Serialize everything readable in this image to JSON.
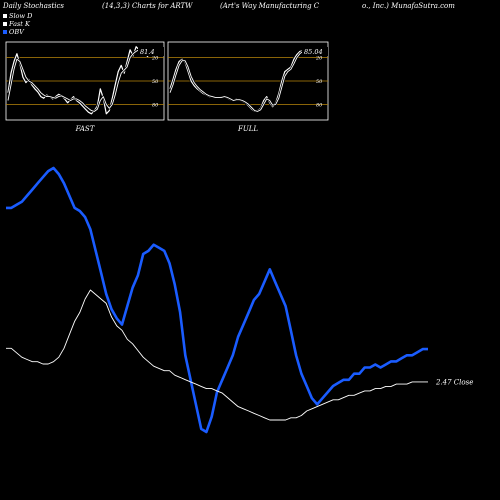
{
  "header": {
    "left": "Daily Stochastics",
    "center_left": "(14,3,3) Charts for ARTW",
    "center": "(Art's Way Manufacturing C",
    "right": "o., Inc.) MunafaSutra.com"
  },
  "legend": [
    {
      "label": "Slow D",
      "color": "#ffffff"
    },
    {
      "label": "Fast K",
      "color": "#ffffff"
    },
    {
      "label": "OBV",
      "color": "#1a5cff"
    }
  ],
  "colors": {
    "obv": "#1a5cff",
    "close": "#ffffff",
    "grid": "#b8860b",
    "background": "#000000"
  },
  "chart_data": [
    {
      "type": "line",
      "title": "FAST",
      "ylim": [
        0,
        100
      ],
      "gridlines": [
        20,
        50,
        80
      ],
      "tick_labels": [
        "80",
        "50",
        "20"
      ],
      "value_label": "81.4",
      "series": [
        {
          "values": [
            35,
            60,
            75,
            85,
            72,
            55,
            48,
            52,
            45,
            40,
            36,
            30,
            28,
            32,
            30,
            27,
            30,
            33,
            31,
            27,
            22,
            26,
            30,
            25,
            22,
            18,
            14,
            10,
            8,
            12,
            18,
            40,
            28,
            8,
            12,
            28,
            45,
            62,
            70,
            60,
            75,
            90,
            82,
            94,
            90,
            87,
            85,
            81
          ]
        },
        {
          "values": [
            25,
            45,
            65,
            78,
            75,
            65,
            55,
            50,
            48,
            44,
            40,
            35,
            32,
            30,
            30,
            29,
            28,
            30,
            31,
            29,
            27,
            25,
            27,
            27,
            25,
            22,
            18,
            15,
            12,
            11,
            14,
            25,
            30,
            20,
            15,
            20,
            32,
            48,
            60,
            64,
            68,
            80,
            85,
            88,
            90,
            89,
            87,
            84
          ]
        }
      ]
    },
    {
      "type": "line",
      "title": "FULL",
      "ylim": [
        0,
        100
      ],
      "gridlines": [
        20,
        50,
        80
      ],
      "tick_labels": [
        "80",
        "50",
        "20"
      ],
      "value_label": "85.04",
      "series": [
        {
          "values": [
            40,
            52,
            65,
            75,
            78,
            74,
            62,
            50,
            44,
            40,
            37,
            34,
            32,
            30,
            30,
            29,
            29,
            30,
            30,
            28,
            26,
            25,
            27,
            26,
            24,
            22,
            18,
            14,
            11,
            12,
            15,
            25,
            30,
            22,
            17,
            22,
            34,
            50,
            62,
            65,
            68,
            78,
            84,
            88,
            89,
            88,
            87,
            85
          ]
        },
        {
          "values": [
            35,
            45,
            58,
            70,
            76,
            76,
            68,
            56,
            48,
            43,
            39,
            36,
            33,
            31,
            30,
            29,
            29,
            29,
            30,
            29,
            27,
            25,
            26,
            26,
            25,
            23,
            20,
            16,
            12,
            11,
            13,
            20,
            27,
            25,
            19,
            20,
            28,
            42,
            56,
            62,
            65,
            72,
            80,
            85,
            88,
            88,
            88,
            86
          ]
        }
      ]
    },
    {
      "type": "line",
      "close_label": "2.47 Close",
      "series": [
        {
          "name": "OBV",
          "values": [
            100,
            100,
            101,
            102,
            104,
            106,
            108,
            110,
            112,
            113,
            111,
            108,
            104,
            100,
            99,
            97,
            93,
            86,
            79,
            72,
            67,
            64,
            62,
            68,
            74,
            78,
            85,
            86,
            88,
            87,
            86,
            82,
            75,
            66,
            52,
            44,
            36,
            28,
            27,
            32,
            40,
            44,
            48,
            52,
            58,
            62,
            66,
            70,
            72,
            76,
            80,
            76,
            72,
            68,
            60,
            52,
            46,
            42,
            38,
            36,
            38,
            40,
            42,
            43,
            44,
            44,
            46,
            46,
            48,
            48,
            49,
            48,
            49,
            50,
            50,
            51,
            52,
            52,
            53,
            54,
            54
          ]
        },
        {
          "name": "Close",
          "values": [
            2.62,
            2.62,
            2.6,
            2.58,
            2.57,
            2.56,
            2.56,
            2.55,
            2.55,
            2.56,
            2.58,
            2.62,
            2.68,
            2.74,
            2.78,
            2.84,
            2.88,
            2.86,
            2.84,
            2.82,
            2.76,
            2.72,
            2.7,
            2.66,
            2.64,
            2.61,
            2.58,
            2.56,
            2.54,
            2.53,
            2.52,
            2.52,
            2.5,
            2.49,
            2.48,
            2.47,
            2.46,
            2.45,
            2.44,
            2.44,
            2.43,
            2.42,
            2.4,
            2.38,
            2.36,
            2.35,
            2.34,
            2.33,
            2.32,
            2.31,
            2.3,
            2.3,
            2.3,
            2.3,
            2.31,
            2.31,
            2.32,
            2.34,
            2.35,
            2.36,
            2.37,
            2.38,
            2.39,
            2.39,
            2.4,
            2.41,
            2.41,
            2.42,
            2.43,
            2.43,
            2.44,
            2.44,
            2.45,
            2.45,
            2.46,
            2.46,
            2.46,
            2.47,
            2.47,
            2.47,
            2.47
          ]
        }
      ]
    }
  ]
}
